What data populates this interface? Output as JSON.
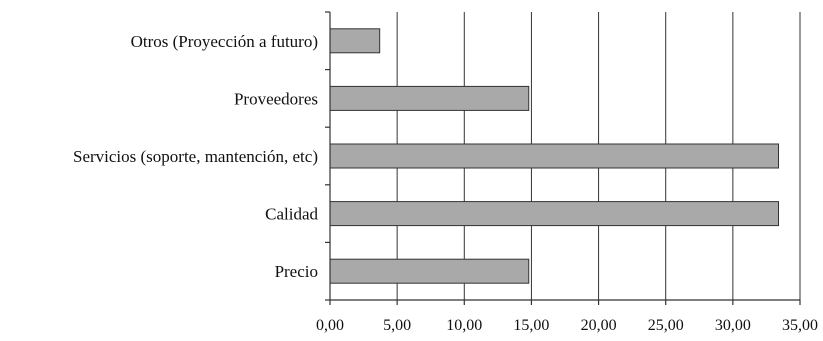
{
  "chart_data": {
    "type": "bar",
    "orientation": "horizontal",
    "categories": [
      "Precio",
      "Calidad",
      "Servicios (soporte, mantención, etc)",
      "Proveedores",
      "Otros (Proyección a futuro)"
    ],
    "values": [
      14.8,
      33.4,
      33.4,
      14.8,
      3.7
    ],
    "xlim": [
      0,
      35
    ],
    "xticks": [
      "0,00",
      "5,00",
      "10,00",
      "15,00",
      "20,00",
      "25,00",
      "30,00",
      "35,00"
    ],
    "grid": "vertical",
    "colors": {
      "bar": "#a9a9a9",
      "outline": "#333333"
    }
  }
}
